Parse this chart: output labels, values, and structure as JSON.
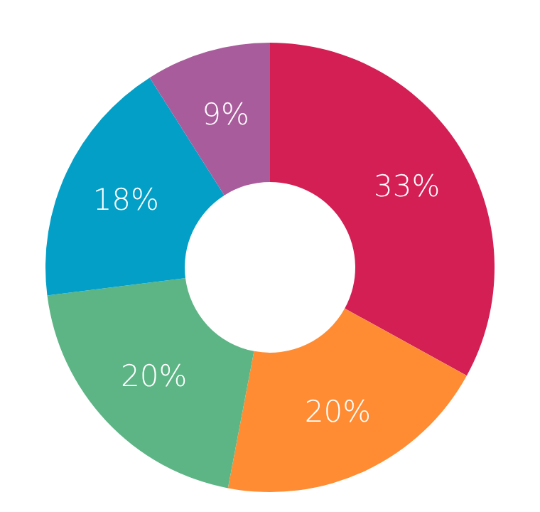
{
  "chart_data": {
    "type": "donut",
    "categories": [
      null,
      null,
      null,
      null,
      null
    ],
    "values": [
      33,
      20,
      20,
      18,
      9
    ],
    "colors": [
      "#d41f55",
      "#ff8c33",
      "#5db585",
      "#039fc6",
      "#a95c9c"
    ],
    "value_labels": [
      "33%",
      "20%",
      "20%",
      "18%",
      "9%"
    ]
  }
}
